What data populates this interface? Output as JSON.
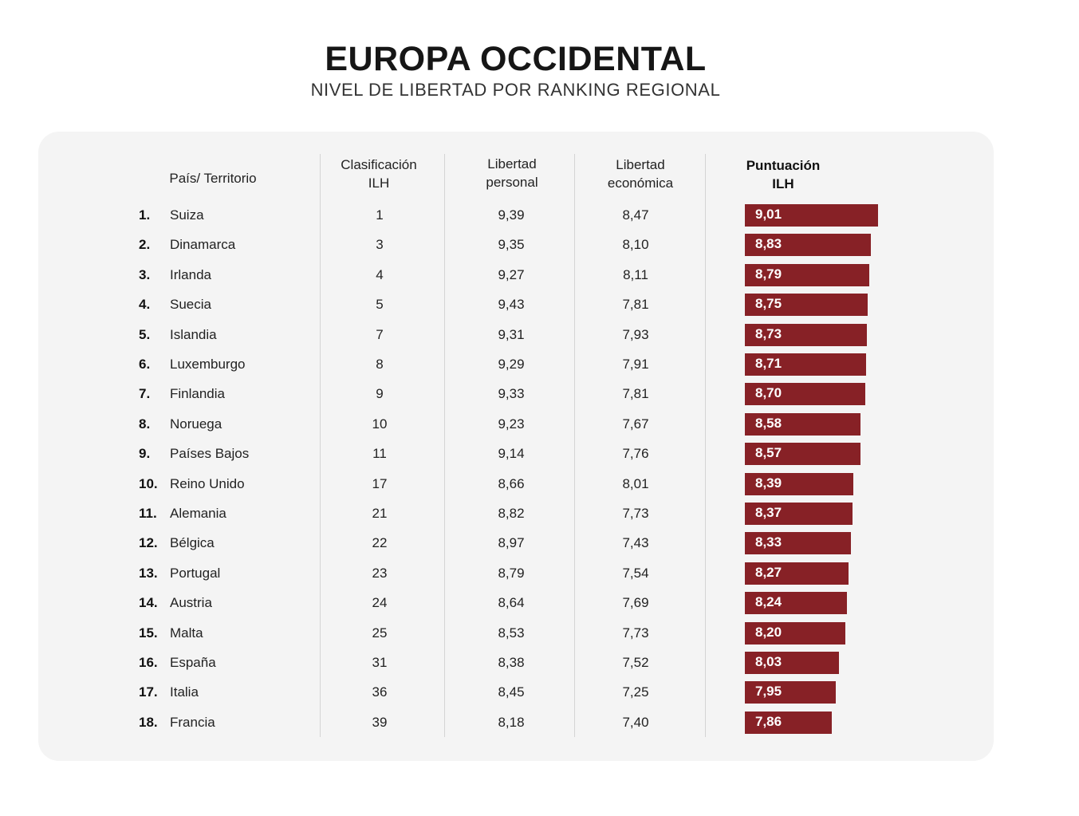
{
  "title": "EUROPA OCCIDENTAL",
  "subtitle": "NIVEL DE LIBERTAD POR RANKING REGIONAL",
  "headers": {
    "country": "País/ Territorio",
    "ilh_rank_line1": "Clasificación",
    "ilh_rank_line2": "ILH",
    "personal_line1": "Libertad",
    "personal_line2": "personal",
    "economic_line1": "Libertad",
    "economic_line2": "económica",
    "score_line1": "Puntuación",
    "score_line2": "ILH"
  },
  "colors": {
    "bar": "#872126",
    "panel": "#f4f4f4"
  },
  "chart_data": {
    "type": "table",
    "title": "EUROPA OCCIDENTAL",
    "subtitle": "NIVEL DE LIBERTAD POR RANKING REGIONAL",
    "columns": [
      "País/ Territorio",
      "Clasificación ILH",
      "Libertad personal",
      "Libertad económica",
      "Puntuación ILH"
    ],
    "bar_scale_max": 9.01,
    "bar_scale_min": 7.86,
    "rows": [
      {
        "rank": "1.",
        "country": "Suiza",
        "ilh_rank": "1",
        "personal": "9,39",
        "economic": "8,47",
        "score_label": "9,01",
        "score": 9.01
      },
      {
        "rank": "2.",
        "country": "Dinamarca",
        "ilh_rank": "3",
        "personal": "9,35",
        "economic": "8,10",
        "score_label": "8,83",
        "score": 8.83
      },
      {
        "rank": "3.",
        "country": "Irlanda",
        "ilh_rank": "4",
        "personal": "9,27",
        "economic": "8,11",
        "score_label": "8,79",
        "score": 8.79
      },
      {
        "rank": "4.",
        "country": "Suecia",
        "ilh_rank": "5",
        "personal": "9,43",
        "economic": "7,81",
        "score_label": "8,75",
        "score": 8.75
      },
      {
        "rank": "5.",
        "country": "Islandia",
        "ilh_rank": "7",
        "personal": "9,31",
        "economic": "7,93",
        "score_label": "8,73",
        "score": 8.73
      },
      {
        "rank": "6.",
        "country": "Luxemburgo",
        "ilh_rank": "8",
        "personal": "9,29",
        "economic": "7,91",
        "score_label": "8,71",
        "score": 8.71
      },
      {
        "rank": "7.",
        "country": "Finlandia",
        "ilh_rank": "9",
        "personal": "9,33",
        "economic": "7,81",
        "score_label": "8,70",
        "score": 8.7
      },
      {
        "rank": "8.",
        "country": "Noruega",
        "ilh_rank": "10",
        "personal": "9,23",
        "economic": "7,67",
        "score_label": "8,58",
        "score": 8.58
      },
      {
        "rank": "9.",
        "country": "Países Bajos",
        "ilh_rank": "11",
        "personal": "9,14",
        "economic": "7,76",
        "score_label": "8,57",
        "score": 8.57
      },
      {
        "rank": "10.",
        "country": "Reino Unido",
        "ilh_rank": "17",
        "personal": "8,66",
        "economic": "8,01",
        "score_label": "8,39",
        "score": 8.39
      },
      {
        "rank": "11.",
        "country": "Alemania",
        "ilh_rank": "21",
        "personal": "8,82",
        "economic": "7,73",
        "score_label": "8,37",
        "score": 8.37
      },
      {
        "rank": "12.",
        "country": "Bélgica",
        "ilh_rank": "22",
        "personal": "8,97",
        "economic": "7,43",
        "score_label": "8,33",
        "score": 8.33
      },
      {
        "rank": "13.",
        "country": "Portugal",
        "ilh_rank": "23",
        "personal": "8,79",
        "economic": "7,54",
        "score_label": "8,27",
        "score": 8.27
      },
      {
        "rank": "14.",
        "country": "Austria",
        "ilh_rank": "24",
        "personal": "8,64",
        "economic": "7,69",
        "score_label": "8,24",
        "score": 8.24
      },
      {
        "rank": "15.",
        "country": "Malta",
        "ilh_rank": "25",
        "personal": "8,53",
        "economic": "7,73",
        "score_label": "8,20",
        "score": 8.2
      },
      {
        "rank": "16.",
        "country": "España",
        "ilh_rank": "31",
        "personal": "8,38",
        "economic": "7,52",
        "score_label": "8,03",
        "score": 8.03
      },
      {
        "rank": "17.",
        "country": "Italia",
        "ilh_rank": "36",
        "personal": "8,45",
        "economic": "7,25",
        "score_label": "7,95",
        "score": 7.95
      },
      {
        "rank": "18.",
        "country": "Francia",
        "ilh_rank": "39",
        "personal": "8,18",
        "economic": "7,40",
        "score_label": "7,86",
        "score": 7.86
      }
    ]
  }
}
